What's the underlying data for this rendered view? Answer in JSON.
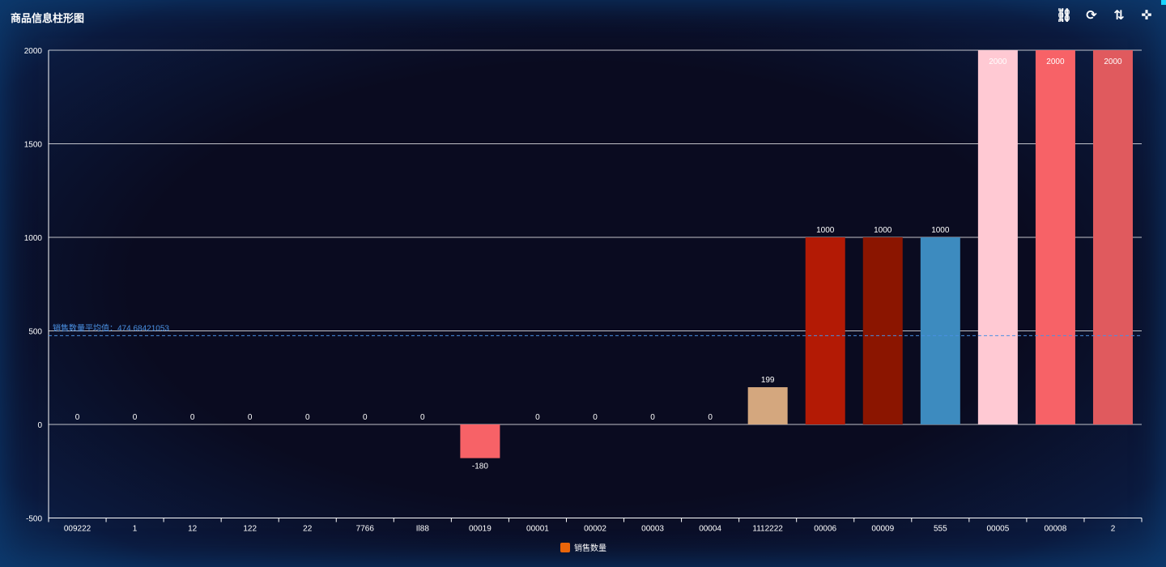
{
  "title": "商品信息柱形图",
  "toolbox": [
    {
      "icon": "unlink-icon"
    },
    {
      "icon": "refresh-icon"
    },
    {
      "icon": "sort-icon"
    },
    {
      "icon": "compress-icon"
    }
  ],
  "legend": {
    "label": "销售数量",
    "color": "#e8650a"
  },
  "colors": {
    "grid": "#ffffff",
    "mean_line": "#4a90e2",
    "label": "#ffffff"
  },
  "chart_data": {
    "type": "bar",
    "categories": [
      "009222",
      "1",
      "12",
      "122",
      "22",
      "7766",
      "Il88",
      "00019",
      "00001",
      "00002",
      "00003",
      "00004",
      "1112222",
      "00006",
      "00009",
      "555",
      "00005",
      "00008",
      "2"
    ],
    "series": [
      {
        "name": "销售数量",
        "values": [
          0,
          0,
          0,
          0,
          0,
          0,
          0,
          -180,
          0,
          0,
          0,
          0,
          199,
          1000,
          1000,
          1000,
          2000,
          2000,
          2000
        ]
      }
    ],
    "bar_colors": [
      "#e8650a",
      "#e8650a",
      "#e8650a",
      "#e8650a",
      "#e8650a",
      "#e8650a",
      "#e8650a",
      "#f76267",
      "#e8650a",
      "#e8650a",
      "#e8650a",
      "#e8650a",
      "#d4a77e",
      "#b31a05",
      "#8b1500",
      "#3d8bbf",
      "#ffc9d3",
      "#f76267",
      "#e05a5e"
    ],
    "ylim": [
      -500,
      2000
    ],
    "yticks": [
      -500,
      0,
      500,
      1000,
      1500,
      2000
    ],
    "grid": true,
    "mean_line": {
      "label": "销售数量平均值：474.68421053",
      "value": 474.68421053
    },
    "legend_position": "bottom-center"
  }
}
